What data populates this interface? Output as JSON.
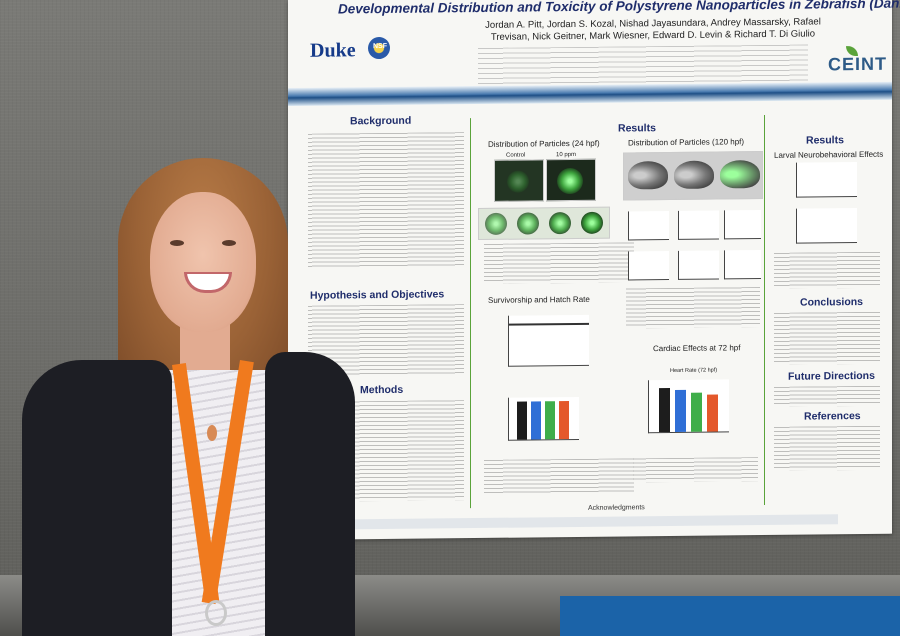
{
  "poster": {
    "title": "Developmental Distribution and Toxicity of Polystyrene Nanoparticles in Zebrafish (Danio rerio)",
    "authors": "Jordan A. Pitt, Jordan S. Kozal, Nishad Jayasundara, Andrey Massarsky, Rafael Trevisan, Nick Geitner, Mark Wiesner, Edward D. Levin & Richard T. Di Giulio",
    "logos": {
      "duke": "Duke",
      "nsf": "NSF",
      "ceint": "CEINT"
    },
    "sections": {
      "background": "Background",
      "hypothesis": "Hypothesis and Objectives",
      "methods": "Methods",
      "results_main": "Results",
      "results_right": "Results",
      "dist_24": "Distribution of Particles (24 hpf)",
      "dist_120": "Distribution of Particles (120 hpf)",
      "survivorship": "Survivorship and Hatch Rate",
      "cardiac": "Cardiac Effects at 72 hpf",
      "larval": "Larval Neurobehavioral Effects",
      "conclusions": "Conclusions",
      "future": "Future Directions",
      "references": "References",
      "acknowledgments": "Acknowledgments"
    },
    "labels": {
      "control": "Control",
      "ten_ppm": "10 ppm",
      "heart_rate": "Heart Rate (72 hpf)"
    }
  },
  "colors": {
    "poster_bg": "#f7f7f4",
    "title_blue": "#1f2d6b",
    "lanyard_orange": "#f07a1e",
    "bar_colors": [
      "#1d1d1d",
      "#2f6fd6",
      "#3fae4a",
      "#e4582b"
    ]
  },
  "chart_bars": {
    "survivorship": [
      0.9,
      0.9,
      0.9,
      0.9
    ],
    "heart_rate": [
      0.85,
      0.8,
      0.75,
      0.72
    ]
  }
}
